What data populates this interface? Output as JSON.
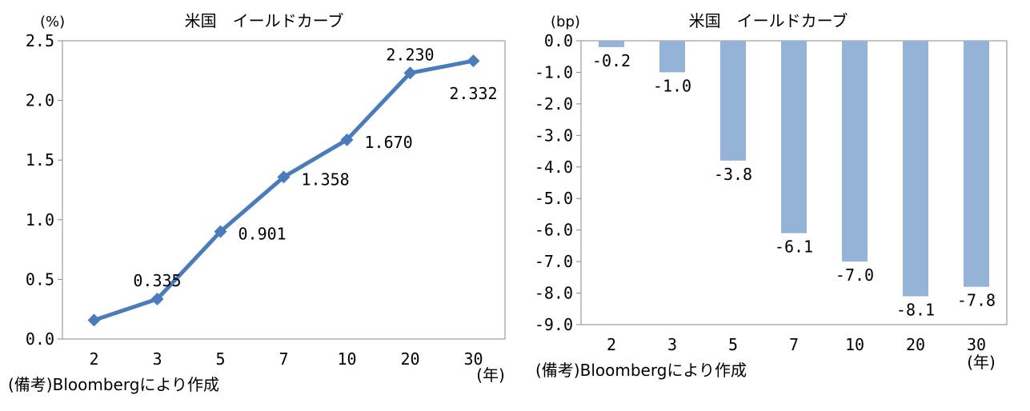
{
  "chart_data": [
    {
      "type": "line",
      "title": "米国　イールドカーブ",
      "y_unit": "(%)",
      "x_unit": "(年)",
      "categories": [
        "2",
        "3",
        "5",
        "7",
        "10",
        "20",
        "30"
      ],
      "series": [
        {
          "values": [
            0.158,
            0.335,
            0.901,
            1.358,
            1.67,
            2.23,
            2.332
          ]
        }
      ],
      "data_labels": [
        "",
        "0.335",
        "0.901",
        "1.358",
        "1.670",
        "2.230",
        "2.332"
      ],
      "ylim": [
        0,
        2.5
      ],
      "yticks": [
        "0.0",
        "0.5",
        "1.0",
        "1.5",
        "2.0",
        "2.5"
      ],
      "grid": false,
      "color": "#4a7bbb",
      "source": "(備考)Bloombergにより作成"
    },
    {
      "type": "bar",
      "title": "米国　イールドカーブ",
      "y_unit": "(bp)",
      "x_unit": "(年)",
      "categories": [
        "2",
        "3",
        "5",
        "7",
        "10",
        "20",
        "30"
      ],
      "series": [
        {
          "values": [
            -0.2,
            -1.0,
            -3.8,
            -6.1,
            -7.0,
            -8.1,
            -7.8
          ]
        }
      ],
      "data_labels": [
        "-0.2",
        "-1.0",
        "-3.8",
        "-6.1",
        "-7.0",
        "-8.1",
        "-7.8"
      ],
      "ylim": [
        -9,
        0
      ],
      "yticks": [
        "0.0",
        "-1.0",
        "-2.0",
        "-3.0",
        "-4.0",
        "-5.0",
        "-6.0",
        "-7.0",
        "-8.0",
        "-9.0"
      ],
      "grid": false,
      "color": "#95b3d7",
      "source": "(備考)Bloombergにより作成"
    }
  ]
}
